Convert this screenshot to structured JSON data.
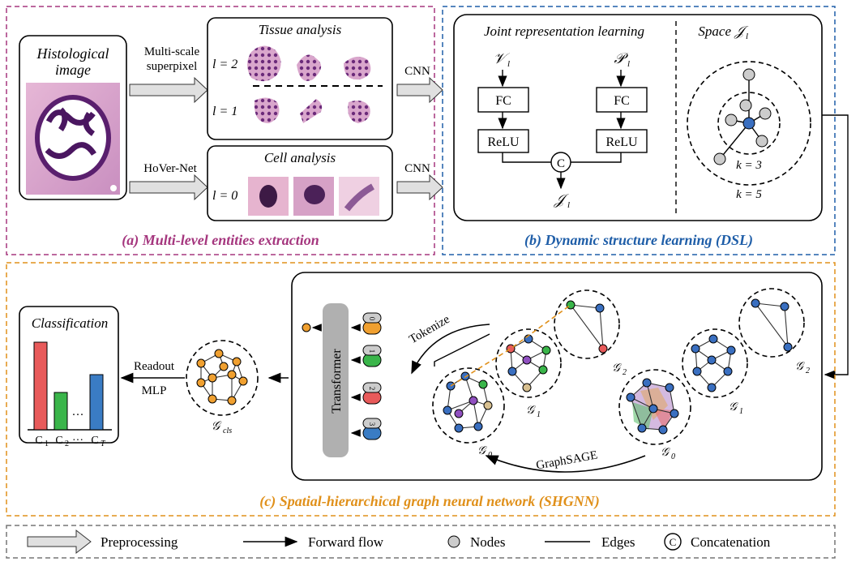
{
  "colors": {
    "section_a": "#a5367e",
    "section_b": "#1f5ea8",
    "section_c": "#e0901a",
    "node_gray": "#cccccc",
    "node_blue": "#3a6fc0",
    "node_orange": "#f0a030",
    "bar_red": "#e85a5a",
    "bar_green": "#3ab54a",
    "bar_blue": "#3a7cc4",
    "transformer_gray": "#b0b0b0"
  },
  "section_a": {
    "title": "(a) Multi-level entities extraction",
    "histo_label_1": "Histological",
    "histo_label_2": "image",
    "arrow_top_1": "Multi-scale",
    "arrow_top_2": "superpixel",
    "arrow_bottom": "HoVer-Net",
    "tissue_title": "Tissue analysis",
    "cell_title": "Cell analysis",
    "level_2": "l = 2",
    "level_1": "l = 1",
    "level_0": "l = 0",
    "cnn_top": "CNN",
    "cnn_bottom": "CNN"
  },
  "section_b": {
    "title": "(b) Dynamic structure learning (DSL)",
    "jrl_title": "Joint representation learning",
    "space_title": "Space 𝒥",
    "space_sub": "l",
    "v_label": "𝒱",
    "v_sub": "l",
    "p_label": "𝒫",
    "p_sub": "l",
    "fc": "FC",
    "relu": "ReLU",
    "concat": "C",
    "j_label": "𝒥",
    "j_sub": "l",
    "k3": "k = 3",
    "k5": "k = 5"
  },
  "section_c": {
    "title": "(c) Spatial-hierarchical graph neural network (SHGNN)",
    "classification": "Classification",
    "c1": "C",
    "c1_sub": "1",
    "c2": "C",
    "c2_sub": "2",
    "ct": "C",
    "ct_sub": "T",
    "dots": "···",
    "readout": "Readout",
    "mlp": "MLP",
    "gcls": "𝒢",
    "gcls_sub": "cls",
    "transformer": "Transformer",
    "tokenize": "Tokenize",
    "graphsage": "GraphSAGE",
    "token_0": "0",
    "token_1": "1",
    "token_2": "2",
    "token_3": "3",
    "g0": "𝒢",
    "g1": "𝒢",
    "g2": "𝒢",
    "sub0": "0",
    "sub1": "1",
    "sub2": "2",
    "gt0": "𝒢",
    "gt1": "𝒢",
    "gt2": "𝒢"
  },
  "legend": {
    "preprocessing": "Preprocessing",
    "forward": "Forward flow",
    "nodes": "Nodes",
    "edges": "Edges",
    "concat_symbol": "C",
    "concatenation": "Concatenation"
  }
}
